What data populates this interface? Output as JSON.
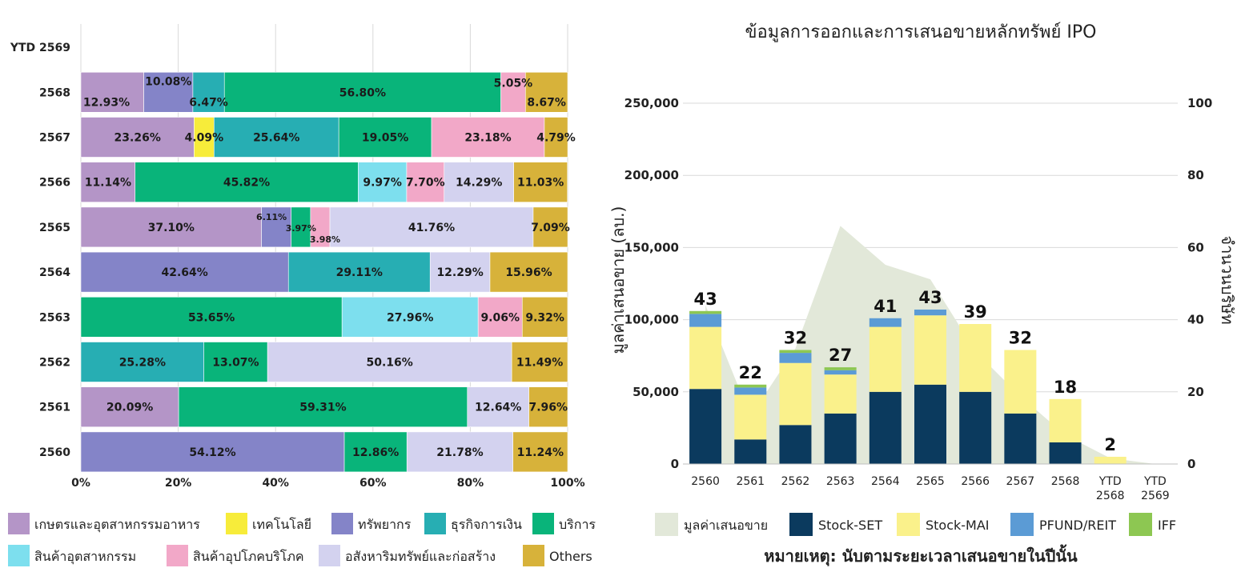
{
  "colors": {
    "agro": "#b495c7",
    "tech": "#f7ec3a",
    "resources": "#8484c8",
    "financial": "#27aeb3",
    "services": "#09b47a",
    "industrial": "#7ddfee",
    "consumer": "#f2a8c8",
    "property": "#d3d2ef",
    "others": "#d7b23a",
    "area": "#e2e8d9",
    "set": "#0b3a5e",
    "mai": "#faf18b",
    "pfund": "#5b9bd5",
    "iff": "#8dc752"
  },
  "chart_data": [
    {
      "type": "bar",
      "orientation": "horizontal-stacked-100",
      "title": "",
      "categories": [
        "YTD 2569",
        "2568",
        "2567",
        "2566",
        "2565",
        "2564",
        "2563",
        "2562",
        "2561",
        "2560"
      ],
      "xlim": [
        0,
        100
      ],
      "x_ticks": [
        "0%",
        "20%",
        "40%",
        "60%",
        "80%",
        "100%"
      ],
      "legend": [
        {
          "key": "agro",
          "label": "เกษตรและอุตสาหกรรมอาหาร"
        },
        {
          "key": "tech",
          "label": "เทคโนโลยี"
        },
        {
          "key": "resources",
          "label": "ทรัพยากร"
        },
        {
          "key": "financial",
          "label": "ธุรกิจการเงิน"
        },
        {
          "key": "services",
          "label": "บริการ"
        },
        {
          "key": "industrial",
          "label": "สินค้าอุตสาหกรรม"
        },
        {
          "key": "consumer",
          "label": "สินค้าอุปโภคบริโภค"
        },
        {
          "key": "property",
          "label": "อสังหาริมทรัพย์และก่อสร้าง"
        },
        {
          "key": "others",
          "label": "Others"
        }
      ],
      "rows": [
        {
          "year": "YTD 2569",
          "segments": []
        },
        {
          "year": "2568",
          "segments": [
            {
              "key": "agro",
              "value": 12.93,
              "label": "12.93%"
            },
            {
              "key": "resources",
              "value": 10.08,
              "label": "10.08%"
            },
            {
              "key": "financial",
              "value": 6.47,
              "label": "6.47%"
            },
            {
              "key": "services",
              "value": 56.8,
              "label": "56.80%"
            },
            {
              "key": "consumer",
              "value": 5.05,
              "label": "5.05%"
            },
            {
              "key": "others",
              "value": 8.67,
              "label": "8.67%"
            }
          ]
        },
        {
          "year": "2567",
          "segments": [
            {
              "key": "agro",
              "value": 23.26,
              "label": "23.26%"
            },
            {
              "key": "tech",
              "value": 4.09,
              "label": "4.09%"
            },
            {
              "key": "financial",
              "value": 25.64,
              "label": "25.64%"
            },
            {
              "key": "services",
              "value": 19.05,
              "label": "19.05%"
            },
            {
              "key": "consumer",
              "value": 23.18,
              "label": "23.18%"
            },
            {
              "key": "others",
              "value": 4.79,
              "label": "4.79%"
            }
          ]
        },
        {
          "year": "2566",
          "segments": [
            {
              "key": "agro",
              "value": 11.14,
              "label": "11.14%"
            },
            {
              "key": "services",
              "value": 45.82,
              "label": "45.82%"
            },
            {
              "key": "industrial",
              "value": 9.97,
              "label": "9.97%"
            },
            {
              "key": "consumer",
              "value": 7.7,
              "label": "7.70%"
            },
            {
              "key": "property",
              "value": 14.29,
              "label": "14.29%"
            },
            {
              "key": "others",
              "value": 11.03,
              "label": "11.03%"
            }
          ]
        },
        {
          "year": "2565",
          "segments": [
            {
              "key": "agro",
              "value": 37.1,
              "label": "37.10%"
            },
            {
              "key": "resources",
              "value": 6.11,
              "label": "6.11%"
            },
            {
              "key": "services",
              "value": 3.97,
              "label": "3.97%"
            },
            {
              "key": "consumer",
              "value": 3.98,
              "label": "3.98%"
            },
            {
              "key": "property",
              "value": 41.76,
              "label": "41.76%"
            },
            {
              "key": "others",
              "value": 7.09,
              "label": "7.09%"
            }
          ]
        },
        {
          "year": "2564",
          "segments": [
            {
              "key": "resources",
              "value": 42.64,
              "label": "42.64%"
            },
            {
              "key": "financial",
              "value": 29.11,
              "label": "29.11%"
            },
            {
              "key": "property",
              "value": 12.29,
              "label": "12.29%"
            },
            {
              "key": "others",
              "value": 15.96,
              "label": "15.96%"
            }
          ]
        },
        {
          "year": "2563",
          "segments": [
            {
              "key": "services",
              "value": 53.65,
              "label": "53.65%"
            },
            {
              "key": "industrial",
              "value": 27.96,
              "label": "27.96%"
            },
            {
              "key": "consumer",
              "value": 9.06,
              "label": "9.06%"
            },
            {
              "key": "others",
              "value": 9.32,
              "label": "9.32%"
            }
          ]
        },
        {
          "year": "2562",
          "segments": [
            {
              "key": "financial",
              "value": 25.28,
              "label": "25.28%"
            },
            {
              "key": "services",
              "value": 13.07,
              "label": "13.07%"
            },
            {
              "key": "property",
              "value": 50.16,
              "label": "50.16%"
            },
            {
              "key": "others",
              "value": 11.49,
              "label": "11.49%"
            }
          ]
        },
        {
          "year": "2561",
          "segments": [
            {
              "key": "agro",
              "value": 20.09,
              "label": "20.09%"
            },
            {
              "key": "services",
              "value": 59.31,
              "label": "59.31%"
            },
            {
              "key": "property",
              "value": 12.64,
              "label": "12.64%"
            },
            {
              "key": "others",
              "value": 7.96,
              "label": "7.96%"
            }
          ]
        },
        {
          "year": "2560",
          "segments": [
            {
              "key": "resources",
              "value": 54.12,
              "label": "54.12%"
            },
            {
              "key": "services",
              "value": 12.86,
              "label": "12.86%"
            },
            {
              "key": "property",
              "value": 21.78,
              "label": "21.78%"
            },
            {
              "key": "others",
              "value": 11.24,
              "label": "11.24%"
            }
          ]
        }
      ]
    },
    {
      "type": "bar",
      "orientation": "vertical-stacked-with-area",
      "title": "ข้อมูลการออกและการเสนอขายหลักทรัพย์ IPO",
      "ylabel": "มูลค่าเสนอขาย (ลบ.)",
      "y2label": "จำนวนบริษัท",
      "ylim": [
        0,
        250000
      ],
      "y_ticks": [
        "0",
        "50,000",
        "100,000",
        "150,000",
        "200,000",
        "250,000"
      ],
      "y2lim": [
        0,
        100
      ],
      "y2_ticks": [
        "0",
        "20",
        "40",
        "60",
        "80",
        "100"
      ],
      "categories": [
        {
          "l1": "2560",
          "l2": ""
        },
        {
          "l1": "2561",
          "l2": ""
        },
        {
          "l1": "2562",
          "l2": ""
        },
        {
          "l1": "2563",
          "l2": ""
        },
        {
          "l1": "2564",
          "l2": ""
        },
        {
          "l1": "2565",
          "l2": ""
        },
        {
          "l1": "2566",
          "l2": ""
        },
        {
          "l1": "2567",
          "l2": ""
        },
        {
          "l1": "2568",
          "l2": ""
        },
        {
          "l1": "YTD",
          "l2": "2568"
        },
        {
          "l1": "YTD",
          "l2": "2569"
        }
      ],
      "area": {
        "name": "มูลค่าเสนอขาย",
        "values": [
          110000,
          33000,
          80000,
          165000,
          138000,
          128000,
          78000,
          47000,
          20000,
          4000,
          0
        ]
      },
      "series": [
        {
          "key": "set",
          "name": "Stock-SET",
          "values": [
            52000,
            17000,
            27000,
            35000,
            50000,
            55000,
            50000,
            35000,
            15000,
            0,
            0
          ]
        },
        {
          "key": "mai",
          "name": "Stock-MAI",
          "values": [
            43000,
            31000,
            43000,
            27000,
            45000,
            48000,
            47000,
            44000,
            30000,
            5000,
            0
          ]
        },
        {
          "key": "pfund",
          "name": "PFUND/REIT",
          "values": [
            9000,
            5000,
            7000,
            3000,
            6000,
            4000,
            0,
            0,
            0,
            0,
            0
          ]
        },
        {
          "key": "iff",
          "name": "IFF",
          "values": [
            2000,
            2000,
            2000,
            2000,
            0,
            0,
            0,
            0,
            0,
            0,
            0
          ]
        }
      ],
      "counts": [
        "43",
        "22",
        "32",
        "27",
        "41",
        "43",
        "39",
        "32",
        "18",
        "2",
        ""
      ],
      "note": "หมายเหตุ: นับตามระยะเวลาเสนอขายในปีนั้น"
    }
  ]
}
